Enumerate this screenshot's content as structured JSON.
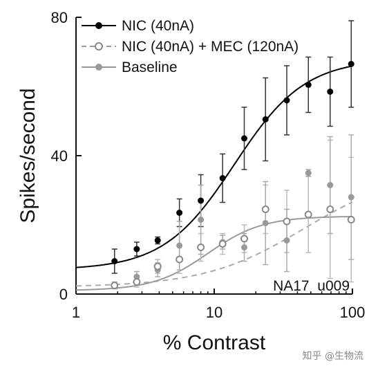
{
  "chart_data": {
    "type": "scatter",
    "xlabel": "% Contrast",
    "ylabel": "Spikes/second",
    "xscale": "log",
    "xlim": [
      1,
      100
    ],
    "ylim": [
      0,
      80
    ],
    "xticks": [
      {
        "value": 1,
        "label": "1"
      },
      {
        "value": 10,
        "label": "10"
      },
      {
        "value": 100,
        "label": "100"
      }
    ],
    "yticks": [
      {
        "value": 0,
        "label": "0"
      },
      {
        "value": 40,
        "label": "40"
      },
      {
        "value": 80,
        "label": "80"
      }
    ],
    "legend_position": "top-left",
    "annotation": "NA17  u009",
    "series": [
      {
        "name": "NIC (40nA)",
        "color": "#000000",
        "marker": "filled-circle",
        "fit_line": "solid",
        "points": [
          {
            "x": 1.9,
            "y": 9.5,
            "err": 3.5
          },
          {
            "x": 2.75,
            "y": 13,
            "err": 2
          },
          {
            "x": 3.9,
            "y": 15.5,
            "err": 1
          },
          {
            "x": 5.6,
            "y": 23.5,
            "err": 4
          },
          {
            "x": 8,
            "y": 27,
            "err": 7.5
          },
          {
            "x": 11.5,
            "y": 33.5,
            "err": 7
          },
          {
            "x": 16.5,
            "y": 45,
            "err": 9
          },
          {
            "x": 23.5,
            "y": 50.5,
            "err": 12
          },
          {
            "x": 33.5,
            "y": 56,
            "err": 10
          },
          {
            "x": 48,
            "y": 60.5,
            "err": 8
          },
          {
            "x": 69,
            "y": 58.5,
            "err": 10
          },
          {
            "x": 98,
            "y": 66.5,
            "err": 12.5
          }
        ],
        "fit": {
          "rmax": 61,
          "c50": 14,
          "n": 1.7,
          "base": 7
        }
      },
      {
        "name": "NIC (40nA) + MEC (120nA)",
        "color": "#888888",
        "marker": "open-circle",
        "fit_line": "dashed",
        "points": [
          {
            "x": 1.9,
            "y": 2.5,
            "err": 0
          },
          {
            "x": 2.75,
            "y": 3.5,
            "err": 1.5
          },
          {
            "x": 3.9,
            "y": 8,
            "err": 2
          },
          {
            "x": 5.6,
            "y": 10,
            "err": 4
          },
          {
            "x": 8,
            "y": 13.5,
            "err": 4
          },
          {
            "x": 11.5,
            "y": 14.5,
            "err": 3
          },
          {
            "x": 16.5,
            "y": 16,
            "err": 4
          },
          {
            "x": 23.5,
            "y": 24.5,
            "err": 7
          },
          {
            "x": 33.5,
            "y": 21,
            "err": 9
          },
          {
            "x": 48,
            "y": 23,
            "err": 11
          },
          {
            "x": 69,
            "y": 24.5,
            "err": 20
          },
          {
            "x": 98,
            "y": 21.5,
            "err": 18
          }
        ],
        "fit": {
          "rmax": 34,
          "c50": 45,
          "n": 1.2,
          "base": 2
        }
      },
      {
        "name": "Baseline",
        "color": "#999999",
        "marker": "filled-circle",
        "fit_line": "solid",
        "points": [
          {
            "x": 1.9,
            "y": 2.5,
            "err": 1
          },
          {
            "x": 2.75,
            "y": 5,
            "err": 1.5
          },
          {
            "x": 3.9,
            "y": 7,
            "err": 2
          },
          {
            "x": 5.6,
            "y": 14,
            "err": 7
          },
          {
            "x": 8,
            "y": 21.5,
            "err": 10
          },
          {
            "x": 11.5,
            "y": 15,
            "err": 2
          },
          {
            "x": 16.5,
            "y": 13.5,
            "err": 4
          },
          {
            "x": 23.5,
            "y": 20.5,
            "err": 12
          },
          {
            "x": 33.5,
            "y": 15.5,
            "err": 9
          },
          {
            "x": 48,
            "y": 35,
            "err": 1
          },
          {
            "x": 69,
            "y": 31.5,
            "err": 14
          },
          {
            "x": 98,
            "y": 28,
            "err": 18
          }
        ],
        "fit": {
          "rmax": 21.5,
          "c50": 9,
          "n": 2.2,
          "base": 1
        }
      }
    ]
  },
  "watermark": "知乎 @生物流"
}
